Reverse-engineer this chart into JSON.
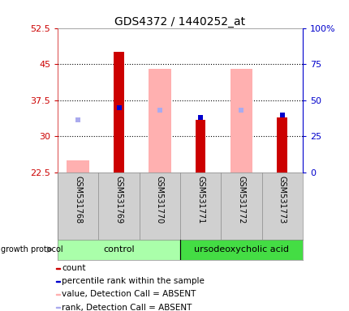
{
  "title": "GDS4372 / 1440252_at",
  "samples": [
    "GSM531768",
    "GSM531769",
    "GSM531770",
    "GSM531771",
    "GSM531772",
    "GSM531773"
  ],
  "ylim_left": [
    22.5,
    52.5
  ],
  "ylim_right": [
    0,
    100
  ],
  "yticks_left": [
    22.5,
    30.0,
    37.5,
    45.0,
    52.5
  ],
  "yticks_right": [
    0,
    25,
    50,
    75,
    100
  ],
  "ytick_labels_left": [
    "22.5",
    "30",
    "37.5",
    "45",
    "52.5"
  ],
  "ytick_labels_right": [
    "0",
    "25",
    "50",
    "75",
    "100%"
  ],
  "red_bars": [
    null,
    47.5,
    null,
    33.5,
    null,
    34.0
  ],
  "blue_bars": [
    null,
    36.0,
    null,
    34.0,
    null,
    34.5
  ],
  "pink_bars": [
    25.0,
    null,
    44.0,
    null,
    44.0,
    null
  ],
  "lightblue_bars": [
    33.5,
    null,
    35.5,
    null,
    35.5,
    null
  ],
  "red_color": "#cc0000",
  "blue_color": "#0000cc",
  "pink_color": "#ffb0b0",
  "lightblue_color": "#aaaaee",
  "chart_area_color": "white",
  "xticklabel_area_color": "#d0d0d0",
  "group_control_color": "#aaffaa",
  "group_udca_color": "#44dd44",
  "left_axis_color": "#cc0000",
  "right_axis_color": "#0000cc",
  "legend_items": [
    "count",
    "percentile rank within the sample",
    "value, Detection Call = ABSENT",
    "rank, Detection Call = ABSENT"
  ],
  "legend_colors": [
    "#cc0000",
    "#0000cc",
    "#ffb0b0",
    "#aaaaee"
  ],
  "hgrid_vals": [
    30.0,
    37.5,
    45.0
  ]
}
